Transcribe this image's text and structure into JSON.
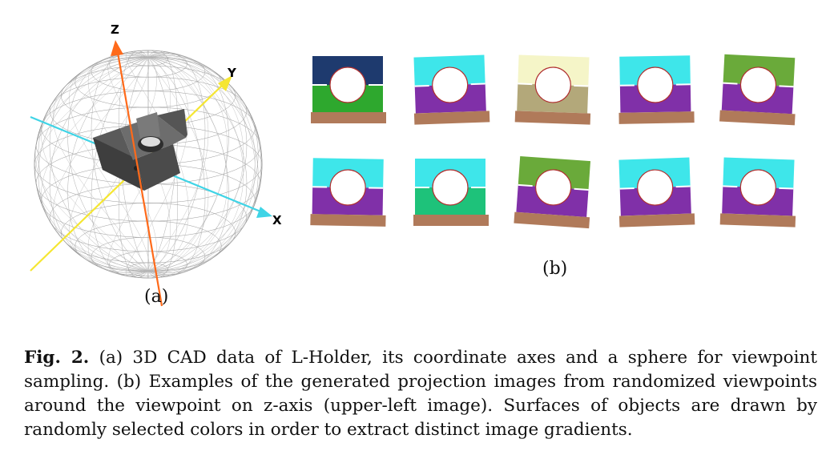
{
  "figure": {
    "axes": {
      "z_label": "Z",
      "y_label": "Y",
      "x_label": "X"
    },
    "axis_colors": {
      "z": "#ff6a1a",
      "y": "#f5e632",
      "x": "#3fd4e6"
    },
    "panel_labels": {
      "a": "(a)",
      "b": "(b)"
    },
    "thumbnails": [
      {
        "top": "#1e3a6e",
        "bottom": "#2ea82e",
        "base": "#b07a5a"
      },
      {
        "top": "#3ee6ea",
        "bottom": "#8030a8",
        "base": "#b07a5a"
      },
      {
        "top": "#f5f5c8",
        "bottom": "#b3a87a",
        "base": "#b07a5a"
      },
      {
        "top": "#3ee6ea",
        "bottom": "#8030a8",
        "base": "#b07a5a"
      },
      {
        "top": "#6aaa3a",
        "bottom": "#8030a8",
        "base": "#b07a5a"
      },
      {
        "top": "#3ee6ea",
        "bottom": "#8030a8",
        "base": "#b07a5a"
      },
      {
        "top": "#3ee6ea",
        "bottom": "#1ec27a",
        "base": "#b07a5a"
      },
      {
        "top": "#6aaa3a",
        "bottom": "#8030a8",
        "base": "#b07a5a"
      },
      {
        "top": "#3ee6ea",
        "bottom": "#8030a8",
        "base": "#b07a5a"
      },
      {
        "top": "#3ee6ea",
        "bottom": "#8030a8",
        "base": "#b07a5a"
      }
    ]
  },
  "caption": {
    "label": "Fig. 2.",
    "text": " (a) 3D CAD data of L-Holder, its coordinate axes and a sphere for viewpoint sampling. (b) Examples of the generated projection images from randomized viewpoints around the viewpoint on z-axis (upper-left image). Surfaces of objects are drawn by randomly selected colors in order to extract distinct image gradients."
  }
}
